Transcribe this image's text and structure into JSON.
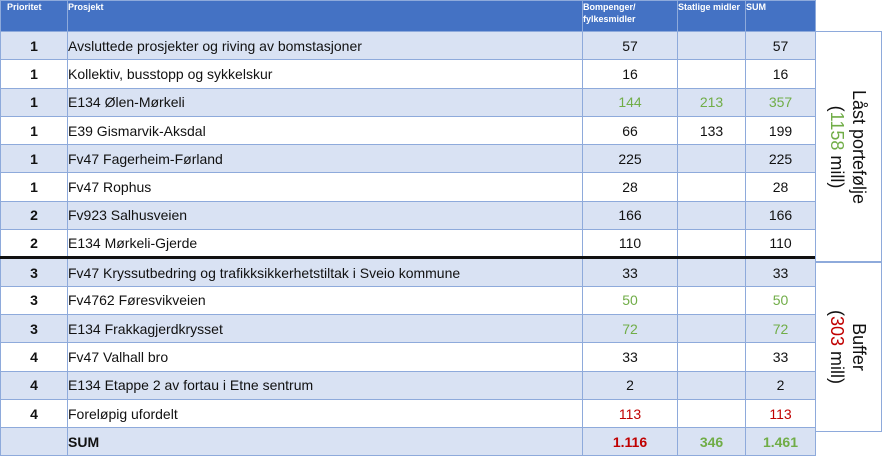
{
  "header": {
    "prioritet": "Prioritet",
    "prosjekt": "Prosjekt",
    "bompenger": "Bompenger/ fylkesmidler",
    "statlige": "Statlige midler",
    "sum": "SUM"
  },
  "rows": [
    {
      "prio": "1",
      "name": "Avsluttede prosjekter og riving av bomstasjoner",
      "bom": "57",
      "stat": "",
      "sum": "57"
    },
    {
      "prio": "1",
      "name": "Kollektiv, busstopp og sykkelskur",
      "bom": "16",
      "stat": "",
      "sum": "16"
    },
    {
      "prio": "1",
      "name": "E134 Ølen-Mørkeli",
      "bom": "144",
      "stat": "213",
      "sum": "357"
    },
    {
      "prio": "1",
      "name": "E39 Gismarvik-Aksdal",
      "bom": "66",
      "stat": "133",
      "sum": "199"
    },
    {
      "prio": "1",
      "name": "Fv47 Fagerheim-Førland",
      "bom": "225",
      "stat": "",
      "sum": "225"
    },
    {
      "prio": "1",
      "name": "Fv47 Rophus",
      "bom": "28",
      "stat": "",
      "sum": "28"
    },
    {
      "prio": "2",
      "name": "Fv923 Salhusveien",
      "bom": "166",
      "stat": "",
      "sum": "166"
    },
    {
      "prio": "2",
      "name": "E134 Mørkeli-Gjerde",
      "bom": "110",
      "stat": "",
      "sum": "110"
    },
    {
      "prio": "3",
      "name": "Fv47 Kryssutbedring og trafikksikkerhetstiltak i Sveio kommune",
      "bom": "33",
      "stat": "",
      "sum": "33"
    },
    {
      "prio": "3",
      "name": "Fv4762 Føresvikveien",
      "bom": "50",
      "stat": "",
      "sum": "50"
    },
    {
      "prio": "3",
      "name": "E134 Frakkagjerdkrysset",
      "bom": "72",
      "stat": "",
      "sum": "72"
    },
    {
      "prio": "4",
      "name": "Fv47 Valhall bro",
      "bom": "33",
      "stat": "",
      "sum": "33"
    },
    {
      "prio": "4",
      "name": "E134 Etappe 2 av fortau i Etne sentrum",
      "bom": "2",
      "stat": "",
      "sum": "2"
    },
    {
      "prio": "4",
      "name": "Foreløpig ufordelt",
      "bom": "113",
      "stat": "",
      "sum": "113"
    }
  ],
  "total": {
    "prio": "",
    "name": "SUM",
    "bom": "1.116",
    "stat": "346",
    "sum": "1.461"
  },
  "side": {
    "locked_title": "Låst portefølje",
    "locked_open": "(",
    "locked_amount": "1158",
    "locked_close": " mill)",
    "buffer_title": "Buffer",
    "buffer_open": "(",
    "buffer_amount": "303",
    "buffer_close": " mill)"
  },
  "colors": {
    "header_bg": "#4472c4",
    "band_bg": "#d9e2f3",
    "border": "#8eaadb",
    "green": "#70ad47",
    "red": "#c00000"
  }
}
